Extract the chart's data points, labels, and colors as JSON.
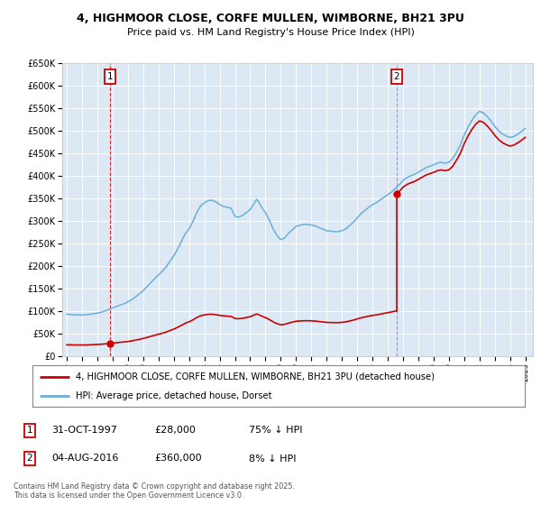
{
  "title_line1": "4, HIGHMOOR CLOSE, CORFE MULLEN, WIMBORNE, BH21 3PU",
  "title_line2": "Price paid vs. HM Land Registry's House Price Index (HPI)",
  "plot_bg_color": "#dce9f5",
  "sale1_x": 1997.833,
  "sale1_price": 28000,
  "sale2_x": 2016.583,
  "sale2_price": 360000,
  "hpi_color": "#6baed6",
  "sale_color": "#cc0000",
  "legend_label_sales": "4, HIGHMOOR CLOSE, CORFE MULLEN, WIMBORNE, BH21 3PU (detached house)",
  "legend_label_hpi": "HPI: Average price, detached house, Dorset",
  "footer_text": "Contains HM Land Registry data © Crown copyright and database right 2025.\nThis data is licensed under the Open Government Licence v3.0.",
  "ylim_max": 650000,
  "ytick_step": 50000,
  "xmin": 1994.7,
  "xmax": 2025.5,
  "hpi_anchors_x": [
    1995.0,
    1995.25,
    1995.5,
    1995.75,
    1996.0,
    1996.25,
    1996.5,
    1996.75,
    1997.0,
    1997.25,
    1997.5,
    1997.75,
    1998.0,
    1998.25,
    1998.5,
    1998.75,
    1999.0,
    1999.25,
    1999.5,
    1999.75,
    2000.0,
    2000.25,
    2000.5,
    2000.75,
    2001.0,
    2001.25,
    2001.5,
    2001.75,
    2002.0,
    2002.25,
    2002.5,
    2002.75,
    2003.0,
    2003.25,
    2003.5,
    2003.75,
    2004.0,
    2004.25,
    2004.5,
    2004.75,
    2005.0,
    2005.25,
    2005.5,
    2005.75,
    2006.0,
    2006.25,
    2006.5,
    2006.75,
    2007.0,
    2007.25,
    2007.417,
    2007.5,
    2007.75,
    2008.0,
    2008.25,
    2008.5,
    2008.75,
    2009.0,
    2009.25,
    2009.5,
    2009.75,
    2010.0,
    2010.25,
    2010.5,
    2010.75,
    2011.0,
    2011.25,
    2011.5,
    2011.75,
    2012.0,
    2012.25,
    2012.5,
    2012.75,
    2013.0,
    2013.25,
    2013.5,
    2013.75,
    2014.0,
    2014.25,
    2014.5,
    2014.75,
    2015.0,
    2015.25,
    2015.5,
    2015.75,
    2016.0,
    2016.25,
    2016.5,
    2016.75,
    2017.0,
    2017.25,
    2017.5,
    2017.75,
    2018.0,
    2018.25,
    2018.5,
    2018.75,
    2019.0,
    2019.25,
    2019.5,
    2019.75,
    2020.0,
    2020.25,
    2020.5,
    2020.75,
    2021.0,
    2021.25,
    2021.5,
    2021.75,
    2022.0,
    2022.25,
    2022.5,
    2022.75,
    2023.0,
    2023.25,
    2023.5,
    2023.75,
    2024.0,
    2024.25,
    2024.5,
    2024.75,
    2025.0
  ],
  "hpi_anchors_y": [
    93000,
    92000,
    91000,
    91500,
    91000,
    91500,
    92500,
    94000,
    95000,
    97000,
    100000,
    103000,
    107000,
    110000,
    113000,
    116000,
    120000,
    125000,
    131000,
    138000,
    145000,
    154000,
    163000,
    172000,
    180000,
    188000,
    198000,
    210000,
    222000,
    237000,
    254000,
    272000,
    282000,
    298000,
    318000,
    333000,
    340000,
    345000,
    346000,
    342000,
    336000,
    332000,
    330000,
    328000,
    310000,
    308000,
    312000,
    318000,
    325000,
    338000,
    348000,
    345000,
    330000,
    318000,
    302000,
    282000,
    268000,
    258000,
    262000,
    272000,
    280000,
    288000,
    290000,
    292000,
    292000,
    291000,
    289000,
    285000,
    282000,
    278000,
    277000,
    276000,
    276000,
    278000,
    282000,
    289000,
    297000,
    306000,
    316000,
    323000,
    330000,
    336000,
    340000,
    346000,
    352000,
    358000,
    364000,
    372000,
    380000,
    390000,
    396000,
    400000,
    403000,
    408000,
    413000,
    418000,
    421000,
    424000,
    428000,
    430000,
    428000,
    430000,
    438000,
    452000,
    468000,
    490000,
    508000,
    523000,
    535000,
    543000,
    540000,
    532000,
    522000,
    510000,
    500000,
    493000,
    488000,
    485000,
    487000,
    492000,
    498000,
    505000
  ]
}
